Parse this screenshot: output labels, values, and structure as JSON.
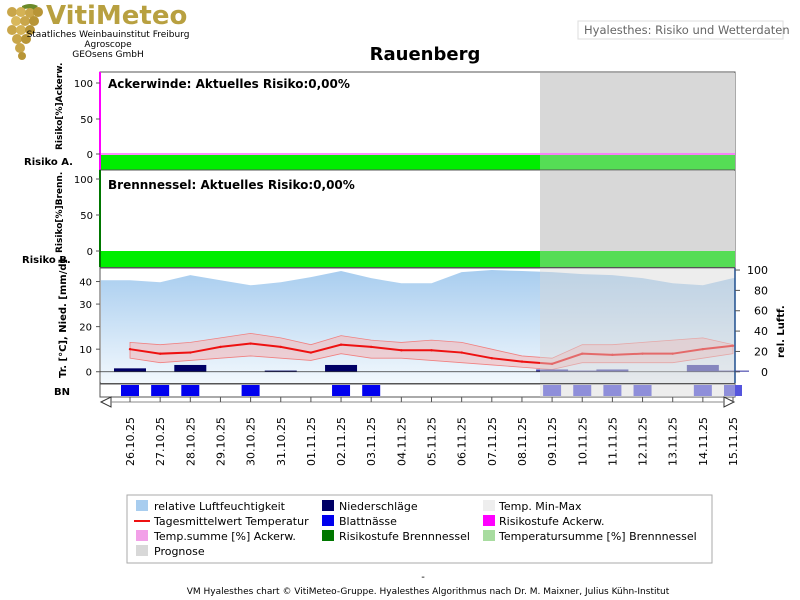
{
  "header": {
    "logo_name": "VitiMeteo",
    "org_lines": [
      "Staatliches Weinbauinstitut Freiburg",
      "Agroscope",
      "GEOsens GmbH"
    ],
    "app_title": "Hyalesthes: Risiko und Wetterdaten",
    "location": "Rauenberg"
  },
  "colors": {
    "risk_green": "#00ee00",
    "risk_green_forecast": "#55dd55",
    "forecast_shade": "#d8d8d8",
    "humidity_blue": "#a8cdef",
    "temp_line": "#ee1111",
    "temp_band": "#f5b5b5",
    "precip": "#000066",
    "leaf_wet": "#0000ee",
    "ackerw_axis": "#ff00ff",
    "brenn_axis": "#007700"
  },
  "panels": {
    "ackerwinde": {
      "title": "Ackerwinde: Aktuelles Risiko:0,00%",
      "ylabel": "Risiko[%]Ackerw.",
      "row_label": "Risiko A.",
      "ticks": [
        "100",
        "50",
        "0"
      ]
    },
    "brennnessel": {
      "title": "Brennnessel: Aktuelles Risiko:0,00%",
      "ylabel": "Risiko[%]Brenn.",
      "row_label": "Risiko B.",
      "ticks": [
        "100",
        "50",
        "0"
      ]
    },
    "weather": {
      "ylabel_left": "Tr. [°C], Nied. [mm/d]",
      "ylabel_right": "rel. Luftf.",
      "ticks_left": [
        "40",
        "30",
        "20",
        "10",
        "0"
      ],
      "ticks_right": [
        "100",
        "80",
        "60",
        "40",
        "20",
        "0"
      ],
      "bn_label": "BN"
    }
  },
  "chart_data": {
    "type": "line",
    "title": "Rauenberg",
    "dates": [
      "26.10.25",
      "27.10.25",
      "28.10.25",
      "29.10.25",
      "30.10.25",
      "31.10.25",
      "01.11.25",
      "02.11.25",
      "03.11.25",
      "04.11.25",
      "05.11.25",
      "06.11.25",
      "07.11.25",
      "08.11.25",
      "09.11.25",
      "10.11.25",
      "11.11.25",
      "12.11.25",
      "13.11.25",
      "14.11.25",
      "15.11.25"
    ],
    "forecast_start": "09.11.25",
    "risk_ackerwinde_percent": [
      0,
      0,
      0,
      0,
      0,
      0,
      0,
      0,
      0,
      0,
      0,
      0,
      0,
      0,
      0,
      0,
      0,
      0,
      0,
      0,
      0
    ],
    "risk_brennnessel_percent": [
      0,
      0,
      0,
      0,
      0,
      0,
      0,
      0,
      0,
      0,
      0,
      0,
      0,
      0,
      0,
      0,
      0,
      0,
      0,
      0,
      0
    ],
    "ylim_left": [
      -5,
      46
    ],
    "ylim_right": [
      -11,
      102
    ],
    "series": [
      {
        "name": "relative Luftfeuchtigkeit",
        "axis": "right",
        "values": [
          90,
          88,
          95,
          90,
          85,
          88,
          93,
          99,
          92,
          87,
          87,
          98,
          100,
          99,
          98,
          96,
          95,
          92,
          87,
          85,
          92
        ]
      },
      {
        "name": "Tagesmittelwert Temperatur",
        "axis": "left",
        "values": [
          10,
          8,
          8.5,
          11,
          12.5,
          11,
          8.5,
          12,
          11,
          9.5,
          9.5,
          8.5,
          6,
          4.5,
          3.5,
          8,
          7.5,
          8,
          8,
          10,
          11.5
        ]
      },
      {
        "name": "Temp. Min-Max",
        "axis": "left",
        "min": [
          6,
          4,
          5,
          6,
          7,
          6,
          5,
          8,
          6,
          6,
          5,
          4,
          3,
          2,
          1,
          4,
          4,
          4,
          4,
          6,
          8
        ],
        "max": [
          13,
          12,
          13,
          15,
          17,
          15,
          12,
          16,
          14,
          13,
          14,
          13,
          10,
          7,
          6,
          12,
          12,
          13,
          14,
          15,
          12
        ]
      },
      {
        "name": "Niederschläge",
        "axis": "left",
        "unit": "mm/d",
        "values": [
          1.5,
          0,
          3,
          0,
          0,
          0.5,
          0,
          3,
          0,
          0,
          0,
          0,
          0,
          0,
          1,
          0.5,
          1,
          0,
          0,
          3,
          0.5
        ]
      },
      {
        "name": "Blattnässe",
        "values": [
          1,
          1,
          1,
          0,
          1,
          0,
          0,
          1,
          1,
          0,
          0,
          0,
          0,
          0,
          1,
          1,
          1,
          1,
          0,
          1,
          1
        ]
      }
    ]
  },
  "legend": {
    "items": [
      [
        "relative Luftfeuchtigkeit",
        "Niederschläge",
        "Temp. Min-Max"
      ],
      [
        "Tagesmittelwert Temperatur",
        "Blattnässe",
        "Risikostufe Ackerw."
      ],
      [
        "Temp.summe [%] Ackerw.",
        "Risikostufe Brennnessel",
        "Temperatursumme [%] Brennnessel"
      ],
      [
        "Prognose"
      ]
    ]
  },
  "footer": {
    "dash": "-",
    "credit": "VM Hyalesthes chart © VitiMeteo-Gruppe. Hyalesthes Algorithmus nach Dr. M. Maixner, Julius Kühn-Institut"
  }
}
